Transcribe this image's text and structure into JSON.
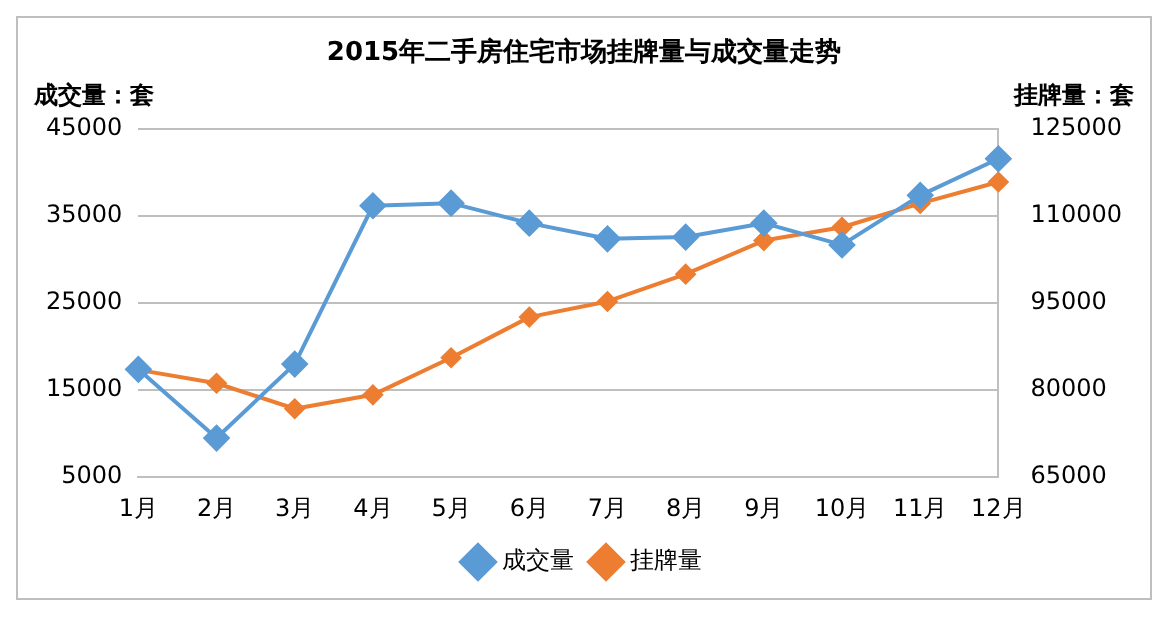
{
  "chart_data": {
    "type": "line",
    "title": "2015年二手房住宅市场挂牌量与成交量走势",
    "ylabel": "成交量：套",
    "y2label": "挂牌量：套",
    "categories": [
      "1月",
      "2月",
      "3月",
      "4月",
      "5月",
      "6月",
      "7月",
      "8月",
      "9月",
      "10月",
      "11月",
      "12月"
    ],
    "series": [
      {
        "name": "成交量",
        "color": "#5b9bd5",
        "values": [
          17400,
          9500,
          18000,
          36200,
          36500,
          34200,
          32400,
          32600,
          34200,
          31700,
          37400,
          41600
        ]
      },
      {
        "name": "挂牌量",
        "color": "#ed7d31",
        "axis": "y2",
        "values": [
          83500,
          81200,
          76800,
          79200,
          85600,
          92600,
          95300,
          100000,
          105800,
          108100,
          112200,
          115900
        ]
      }
    ],
    "ylim": [
      5000,
      45000
    ],
    "yticks": [
      5000,
      15000,
      25000,
      35000,
      45000
    ],
    "y2lim": [
      65000,
      125000
    ],
    "y2ticks": [
      65000,
      80000,
      95000,
      110000,
      125000
    ],
    "grid": "y",
    "legend": "bottom",
    "marker": "diamond",
    "line_style": "solid"
  }
}
